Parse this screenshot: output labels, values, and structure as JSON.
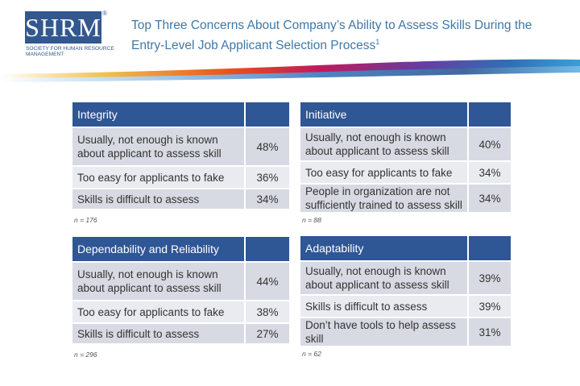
{
  "logo": {
    "text": "SHRM",
    "registered": "®",
    "subtitle": "Society for Human Resource Management"
  },
  "title": {
    "text": "Top Three Concerns About Company’s Ability to Assess Skills During the Entry-Level Job Applicant Selection Process",
    "footnote": "1"
  },
  "colors": {
    "header": "#2f5695",
    "shade_dark": "#d7dae2",
    "shade_light": "#e9ebf0",
    "title": "#3f78a8"
  },
  "tables": [
    {
      "heading": "Integrity",
      "rows": [
        {
          "label": "Usually, not enough is known about applicant to assess skill",
          "value": "48%"
        },
        {
          "label": "Too easy for applicants to fake",
          "value": "36%"
        },
        {
          "label": "Skills is difficult to assess",
          "value": "34%"
        }
      ],
      "note": "n = 176"
    },
    {
      "heading": "Initiative",
      "rows": [
        {
          "label": "Usually, not enough is known about applicant to assess skill",
          "value": "40%"
        },
        {
          "label": "Too easy for applicants to fake",
          "value": "34%"
        },
        {
          "label": "People in organization are not sufficiently trained to assess skill",
          "value": "34%"
        }
      ],
      "note": "n = 88"
    },
    {
      "heading": "Dependability and Reliability",
      "rows": [
        {
          "label": "Usually, not enough is known about applicant to assess skill",
          "value": "44%"
        },
        {
          "label": "Too easy for applicants to fake",
          "value": "38%"
        },
        {
          "label": "Skills is difficult to assess",
          "value": "27%"
        }
      ],
      "note": "n = 296"
    },
    {
      "heading": "Adaptability",
      "rows": [
        {
          "label": "Usually, not enough is known about applicant to assess skill",
          "value": "39%"
        },
        {
          "label": "Skills is difficult to assess",
          "value": "39%"
        },
        {
          "label": "Don’t have tools to help assess skill",
          "value": "31%"
        }
      ],
      "note": "n = 62"
    }
  ]
}
